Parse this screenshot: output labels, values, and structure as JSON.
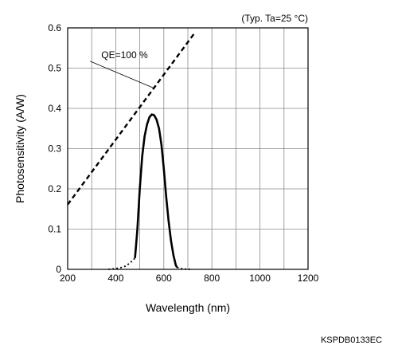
{
  "chart_data": {
    "type": "line",
    "condition_note": "(Typ. Ta=25 °C)",
    "xlabel": "Wavelength (nm)",
    "ylabel": "Photosensitivity (A/W)",
    "xlim": [
      200,
      1200
    ],
    "ylim": [
      0,
      0.6
    ],
    "x_ticks": [
      200,
      400,
      600,
      800,
      1000,
      1200
    ],
    "x_tick_labels": [
      "200",
      "400",
      "600",
      "800",
      "1000",
      "1200"
    ],
    "y_ticks": [
      0,
      0.1,
      0.2,
      0.3,
      0.4,
      0.5,
      0.6
    ],
    "y_tick_labels": [
      "0",
      "0.1",
      "0.2",
      "0.3",
      "0.4",
      "0.5",
      "0.6"
    ],
    "x_grid_step": 100,
    "y_grid_step": 0.1,
    "grid": true,
    "annotations": [
      {
        "text": "QE=100 %",
        "x": 340,
        "y": 0.525,
        "points_to_x": 560,
        "points_to_y": 0.45
      }
    ],
    "series": [
      {
        "style": "dashed",
        "x": [
          200,
          730
        ],
        "y": [
          0.161,
          0.589
        ]
      },
      {
        "style": "dotted",
        "x": [
          370,
          400,
          420,
          440,
          460,
          480
        ],
        "y": [
          0.0,
          0.002,
          0.004,
          0.008,
          0.016,
          0.028
        ]
      },
      {
        "style": "solid",
        "x": [
          480,
          490,
          500,
          510,
          520,
          530,
          540,
          550,
          560,
          570,
          580,
          590,
          600,
          610,
          620,
          630,
          640,
          650,
          655
        ],
        "y": [
          0.028,
          0.1,
          0.2,
          0.28,
          0.33,
          0.36,
          0.378,
          0.385,
          0.383,
          0.372,
          0.35,
          0.31,
          0.25,
          0.18,
          0.12,
          0.07,
          0.035,
          0.01,
          0.005
        ]
      },
      {
        "style": "dotted",
        "x": [
          655,
          670,
          690,
          710
        ],
        "y": [
          0.005,
          0.002,
          0.0005,
          0.0
        ]
      }
    ]
  },
  "footer": {
    "code": "KSPDB0133EC"
  }
}
